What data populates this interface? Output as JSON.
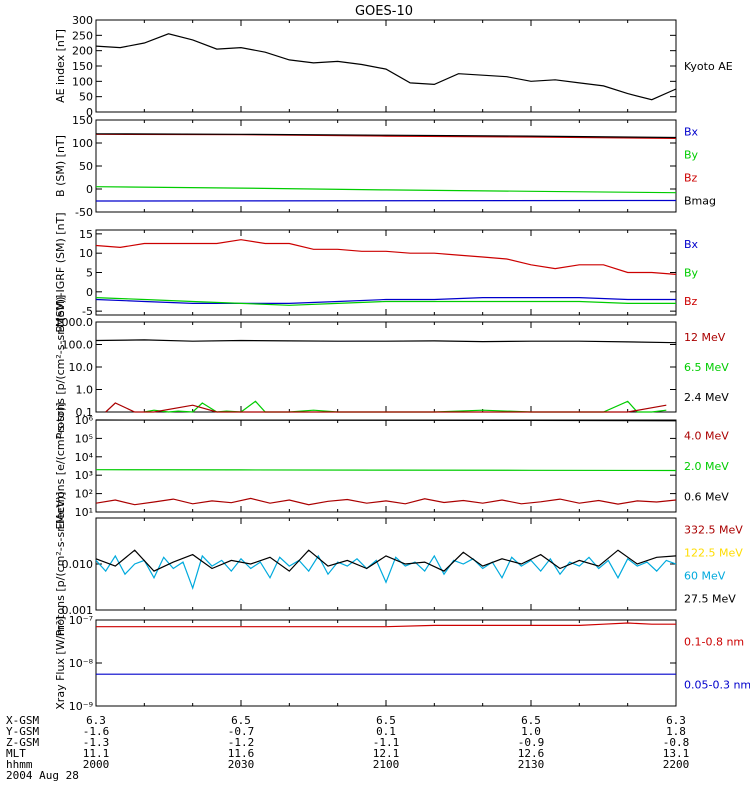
{
  "title": "GOES-10",
  "date_label": "2004 Aug 28",
  "footer": {
    "rows": [
      {
        "label": "X-GSM",
        "values": [
          "6.3",
          "6.5",
          "6.5",
          "6.5",
          "6.3"
        ]
      },
      {
        "label": "Y-GSM",
        "values": [
          "-1.6",
          "-0.7",
          "0.1",
          "1.0",
          "1.8"
        ]
      },
      {
        "label": "Z-GSM",
        "values": [
          "-1.3",
          "-1.2",
          "-1.1",
          "-0.9",
          "-0.8"
        ]
      },
      {
        "label": "MLT",
        "values": [
          "11.1",
          "11.6",
          "12.1",
          "12.6",
          "13.1"
        ]
      },
      {
        "label": "hhmm",
        "values": [
          "2000",
          "2030",
          "2100",
          "2130",
          "2200"
        ]
      }
    ]
  },
  "colors": {
    "black": "#000000",
    "red": "#cc0000",
    "green": "#00cc00",
    "blue": "#0000cc",
    "yellow": "#ffdd00",
    "cyan": "#00aadd",
    "darkred": "#aa0000"
  },
  "chart_data": [
    {
      "type": "line",
      "ylabel": "AE index [nT]",
      "scale": "linear",
      "ylim": [
        0,
        300
      ],
      "yticks": [
        0,
        50,
        100,
        150,
        200,
        250,
        300
      ],
      "ytick_labels": [
        "0",
        "50",
        "100",
        "150",
        "200",
        "250",
        "300"
      ],
      "legend": [
        {
          "name": "Kyoto AE",
          "color": "black"
        }
      ],
      "series": [
        {
          "name": "Kyoto AE",
          "color": "black",
          "x": [
            0,
            5,
            10,
            15,
            20,
            25,
            30,
            35,
            40,
            45,
            50,
            55,
            60,
            65,
            70,
            75,
            80,
            85,
            90,
            95,
            100,
            105,
            110,
            115,
            120
          ],
          "y": [
            215,
            210,
            225,
            255,
            235,
            205,
            210,
            195,
            170,
            160,
            165,
            155,
            140,
            95,
            90,
            125,
            120,
            115,
            100,
            105,
            95,
            85,
            60,
            40,
            75
          ]
        }
      ]
    },
    {
      "type": "line",
      "ylabel": "B (SM) [nT]",
      "scale": "linear",
      "ylim": [
        -50,
        150
      ],
      "yticks": [
        -50,
        0,
        50,
        100,
        150
      ],
      "ytick_labels": [
        "-50",
        "0",
        "50",
        "100",
        "150"
      ],
      "legend": [
        {
          "name": "Bx",
          "color": "blue"
        },
        {
          "name": "By",
          "color": "green"
        },
        {
          "name": "Bz",
          "color": "red"
        },
        {
          "name": "Bmag",
          "color": "black"
        }
      ],
      "series": [
        {
          "name": "Bx",
          "color": "blue",
          "x": [
            0,
            120
          ],
          "y": [
            -26,
            -25
          ]
        },
        {
          "name": "By",
          "color": "green",
          "x": [
            0,
            30,
            60,
            90,
            120
          ],
          "y": [
            5,
            2,
            -2,
            -5,
            -8
          ]
        },
        {
          "name": "Bz",
          "color": "red",
          "x": [
            0,
            30,
            60,
            90,
            120
          ],
          "y": [
            119,
            118,
            115,
            113,
            110
          ]
        },
        {
          "name": "Bmag",
          "color": "black",
          "x": [
            0,
            30,
            60,
            90,
            120
          ],
          "y": [
            120,
            119,
            117,
            115,
            112
          ]
        }
      ]
    },
    {
      "type": "line",
      "ylabel": "B (SM)-IGRF (SM) [nT]",
      "scale": "linear",
      "ylim": [
        -6,
        16
      ],
      "yticks": [
        -5,
        0,
        5,
        10,
        15
      ],
      "ytick_labels": [
        "-5",
        "0",
        "5",
        "10",
        "15"
      ],
      "legend": [
        {
          "name": "Bx",
          "color": "blue"
        },
        {
          "name": "By",
          "color": "green"
        },
        {
          "name": "Bz",
          "color": "red"
        }
      ],
      "series": [
        {
          "name": "Bz",
          "color": "red",
          "x": [
            0,
            5,
            10,
            15,
            20,
            25,
            30,
            35,
            40,
            45,
            50,
            55,
            60,
            65,
            70,
            75,
            80,
            85,
            90,
            95,
            100,
            105,
            110,
            115,
            120
          ],
          "y": [
            12,
            11.5,
            12.5,
            12.5,
            12.5,
            12.5,
            13.5,
            12.5,
            12.5,
            11,
            11,
            10.5,
            10.5,
            10,
            10,
            9.5,
            9,
            8.5,
            7,
            6,
            7,
            7,
            5,
            5,
            4.5
          ]
        },
        {
          "name": "Bx",
          "color": "blue",
          "x": [
            0,
            10,
            20,
            30,
            40,
            50,
            60,
            70,
            80,
            90,
            100,
            110,
            120
          ],
          "y": [
            -2,
            -2.5,
            -3,
            -3,
            -3,
            -2.5,
            -2,
            -2,
            -1.5,
            -1.5,
            -1.5,
            -2,
            -2
          ]
        },
        {
          "name": "By",
          "color": "green",
          "x": [
            0,
            10,
            20,
            30,
            40,
            50,
            60,
            70,
            80,
            90,
            100,
            110,
            120
          ],
          "y": [
            -1.5,
            -2,
            -2.5,
            -3,
            -3.5,
            -3,
            -2.5,
            -2.5,
            -2.5,
            -2.5,
            -2.5,
            -3,
            -3
          ]
        }
      ]
    },
    {
      "type": "line",
      "ylabel": "Protons [p/(cm²-s-sr-MeV)]",
      "scale": "log",
      "ylim": [
        0.1,
        1000
      ],
      "yticks": [
        0.1,
        1,
        10,
        100,
        1000
      ],
      "ytick_labels": [
        "0.1",
        "1.0",
        "10.0",
        "100.0",
        "1000.0"
      ],
      "legend": [
        {
          "name": "12 MeV",
          "color": "darkred"
        },
        {
          "name": "6.5 MeV",
          "color": "green"
        },
        {
          "name": "2.4 MeV",
          "color": "black"
        }
      ],
      "series": [
        {
          "name": "2.4 MeV",
          "color": "black",
          "x": [
            0,
            10,
            20,
            30,
            40,
            50,
            60,
            70,
            80,
            90,
            100,
            110,
            120
          ],
          "y": [
            150,
            160,
            140,
            150,
            145,
            140,
            140,
            145,
            135,
            140,
            140,
            130,
            120
          ]
        },
        {
          "name": "6.5 MeV",
          "color": "green",
          "x": [
            10,
            12,
            15,
            17,
            20,
            22,
            25,
            27,
            30,
            33,
            35,
            40,
            45,
            50,
            55,
            60,
            65,
            70,
            80,
            90,
            100,
            105,
            110,
            112,
            115,
            118
          ],
          "y": [
            0.1,
            0.12,
            0.1,
            0.11,
            0.1,
            0.25,
            0.1,
            0.11,
            0.1,
            0.3,
            0.1,
            0.1,
            0.12,
            0.1,
            0.1,
            0.1,
            0.1,
            0.1,
            0.12,
            0.1,
            0.1,
            0.1,
            0.3,
            0.1,
            0.1,
            0.12
          ]
        },
        {
          "name": "12 MeV",
          "color": "darkred",
          "x": [
            2,
            4,
            8,
            12,
            20,
            25,
            30,
            40,
            50,
            60,
            70,
            80,
            90,
            100,
            110,
            118
          ],
          "y": [
            0.1,
            0.25,
            0.1,
            0.1,
            0.2,
            0.1,
            0.1,
            0.1,
            0.1,
            0.1,
            0.1,
            0.1,
            0.1,
            0.1,
            0.1,
            0.2
          ]
        }
      ]
    },
    {
      "type": "line",
      "ylabel": "Electrons [e/(cm²-s-sr)]",
      "scale": "log",
      "ylim": [
        10,
        1000000
      ],
      "yticks": [
        10,
        100,
        1000,
        10000,
        100000,
        1000000
      ],
      "ytick_labels": [
        "10¹",
        "10²",
        "10³",
        "10⁴",
        "10⁵",
        "10⁶"
      ],
      "legend": [
        {
          "name": "4.0 MeV",
          "color": "darkred"
        },
        {
          "name": "2.0 MeV",
          "color": "green"
        },
        {
          "name": "0.6 MeV",
          "color": "black"
        }
      ],
      "series": [
        {
          "name": "0.6 MeV",
          "color": "black",
          "x": [
            0,
            30,
            60,
            90,
            120
          ],
          "y": [
            1000000,
            980000,
            960000,
            950000,
            900000
          ]
        },
        {
          "name": "2.0 MeV",
          "color": "green",
          "x": [
            0,
            30,
            60,
            90,
            120
          ],
          "y": [
            2000,
            1950,
            1900,
            1850,
            1800
          ]
        },
        {
          "name": "4.0 MeV",
          "color": "darkred",
          "x": [
            0,
            4,
            8,
            12,
            16,
            20,
            24,
            28,
            32,
            36,
            40,
            44,
            48,
            52,
            56,
            60,
            64,
            68,
            72,
            76,
            80,
            84,
            88,
            92,
            96,
            100,
            104,
            108,
            112,
            116,
            120
          ],
          "y": [
            30,
            45,
            25,
            35,
            50,
            28,
            40,
            32,
            55,
            30,
            45,
            25,
            38,
            48,
            30,
            40,
            28,
            52,
            33,
            42,
            30,
            45,
            28,
            36,
            50,
            30,
            42,
            27,
            40,
            35,
            45
          ]
        }
      ]
    },
    {
      "type": "line",
      "ylabel": "Protons [p/(cm²-s-sr-MeV)]",
      "scale": "log",
      "ylim": [
        0.001,
        0.1
      ],
      "yticks": [
        0.001,
        0.01
      ],
      "ytick_labels": [
        "0.001",
        "0.010"
      ],
      "legend": [
        {
          "name": "332.5 MeV",
          "color": "darkred"
        },
        {
          "name": "122.5 MeV",
          "color": "yellow"
        },
        {
          "name": "60 MeV",
          "color": "cyan"
        },
        {
          "name": "27.5 MeV",
          "color": "black"
        }
      ],
      "series": [
        {
          "name": "60 MeV",
          "color": "cyan",
          "x": [
            0,
            2,
            4,
            6,
            8,
            10,
            12,
            14,
            16,
            18,
            20,
            22,
            24,
            26,
            28,
            30,
            32,
            34,
            36,
            38,
            40,
            42,
            44,
            46,
            48,
            50,
            52,
            54,
            56,
            58,
            60,
            62,
            64,
            66,
            68,
            70,
            72,
            74,
            76,
            78,
            80,
            82,
            84,
            86,
            88,
            90,
            92,
            94,
            96,
            98,
            100,
            102,
            104,
            106,
            108,
            110,
            112,
            114,
            116,
            118,
            120
          ],
          "y": [
            0.012,
            0.007,
            0.015,
            0.006,
            0.01,
            0.012,
            0.005,
            0.014,
            0.008,
            0.011,
            0.003,
            0.015,
            0.009,
            0.012,
            0.007,
            0.013,
            0.008,
            0.011,
            0.005,
            0.014,
            0.009,
            0.012,
            0.007,
            0.015,
            0.006,
            0.011,
            0.009,
            0.013,
            0.008,
            0.012,
            0.004,
            0.014,
            0.009,
            0.011,
            0.007,
            0.015,
            0.006,
            0.012,
            0.01,
            0.013,
            0.008,
            0.011,
            0.005,
            0.014,
            0.009,
            0.012,
            0.007,
            0.013,
            0.006,
            0.011,
            0.009,
            0.014,
            0.008,
            0.012,
            0.005,
            0.013,
            0.009,
            0.011,
            0.007,
            0.012,
            0.01
          ]
        },
        {
          "name": "27.5 MeV",
          "color": "black",
          "x": [
            0,
            4,
            8,
            12,
            16,
            20,
            24,
            28,
            32,
            36,
            40,
            44,
            48,
            52,
            56,
            60,
            64,
            68,
            72,
            76,
            80,
            84,
            88,
            92,
            96,
            100,
            104,
            108,
            112,
            116,
            120
          ],
          "y": [
            0.013,
            0.009,
            0.02,
            0.007,
            0.011,
            0.016,
            0.008,
            0.012,
            0.01,
            0.014,
            0.007,
            0.02,
            0.009,
            0.012,
            0.008,
            0.015,
            0.01,
            0.011,
            0.007,
            0.018,
            0.009,
            0.013,
            0.01,
            0.016,
            0.008,
            0.012,
            0.009,
            0.02,
            0.01,
            0.014,
            0.015
          ]
        }
      ]
    },
    {
      "type": "line",
      "ylabel": "Xray Flux [W/m²]",
      "scale": "log",
      "ylim": [
        1e-09,
        1e-07
      ],
      "yticks": [
        1e-09,
        1e-08,
        1e-07
      ],
      "ytick_labels": [
        "10⁻⁹",
        "10⁻⁸",
        "10⁻⁷"
      ],
      "legend": [
        {
          "name": "0.1-0.8 nm",
          "color": "red"
        },
        {
          "name": "0.05-0.3 nm",
          "color": "blue"
        }
      ],
      "series": [
        {
          "name": "0.1-0.8 nm",
          "color": "red",
          "x": [
            0,
            20,
            40,
            60,
            70,
            80,
            90,
            100,
            105,
            110,
            115,
            120
          ],
          "y": [
            7e-08,
            7e-08,
            7e-08,
            7e-08,
            7.5e-08,
            7.5e-08,
            7.5e-08,
            7.5e-08,
            8e-08,
            8.5e-08,
            8e-08,
            8e-08
          ]
        },
        {
          "name": "0.05-0.3 nm",
          "color": "blue",
          "x": [
            0,
            30,
            60,
            90,
            120
          ],
          "y": [
            5.5e-09,
            5.5e-09,
            5.5e-09,
            5.5e-09,
            5.5e-09
          ]
        }
      ]
    }
  ]
}
